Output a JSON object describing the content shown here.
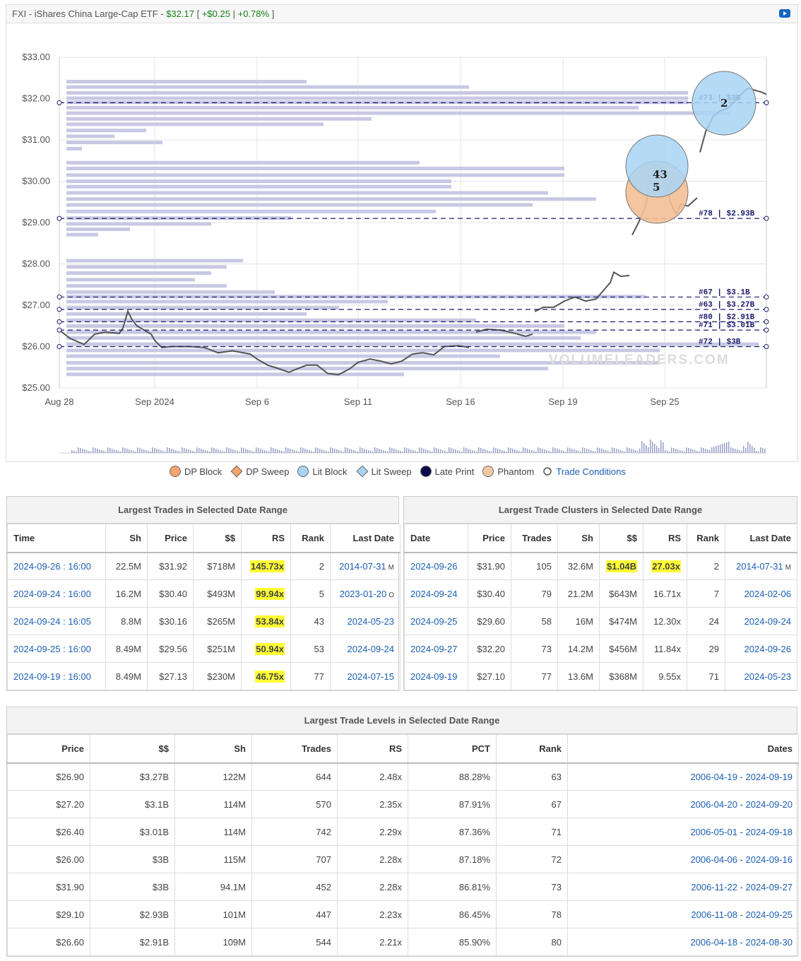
{
  "header": {
    "symbol": "FXI - iShares China Large-Cap ETF -",
    "price": "$32.17",
    "change": "+$0.25",
    "change_pct": "+0.78%",
    "open_bracket": "[",
    "pipe": "|",
    "close_bracket": "]"
  },
  "chart": {
    "watermark": "VOLUMELEADERS.COM",
    "y_ticks": [
      "$33.00",
      "$32.00",
      "$31.00",
      "$30.00",
      "$29.00",
      "$28.00",
      "$27.00",
      "$26.00",
      "$25.00"
    ],
    "x_ticks": [
      "Aug 28",
      "Sep 2024",
      "Sep 6",
      "Sep 11",
      "Sep 16",
      "Sep 19",
      "Sep 25"
    ],
    "level_labels": [
      {
        "text": "#73 | $3B",
        "price": 31.9
      },
      {
        "text": "#78 | $2.93B",
        "price": 29.1
      },
      {
        "text": "#67 | $3.1B",
        "price": 27.2
      },
      {
        "text": "#63 | $3.27B",
        "price": 26.9
      },
      {
        "text": "#80 | $2.91B",
        "price": 26.6
      },
      {
        "text": "#71 | $3.01B",
        "price": 26.4
      },
      {
        "text": "#72 | $3B",
        "price": 26.0
      }
    ],
    "bubbles": [
      {
        "rank_text": "2",
        "color": "#a8d4f5"
      },
      {
        "rank_text": "43",
        "color": "#a8d4f5"
      },
      {
        "rank_text": "5",
        "color": "#f3bf93"
      }
    ],
    "colors": {
      "line": "#555555",
      "level": "#1a1a6e",
      "volume_profile": "#c8c8e4",
      "up": "#1a7f1a"
    }
  },
  "legend": [
    {
      "label": "DP Block",
      "shape": "circle",
      "color": "#f3a56c"
    },
    {
      "label": "DP Sweep",
      "shape": "diamond",
      "color": "#f3a56c"
    },
    {
      "label": "Lit Block",
      "shape": "circle",
      "color": "#a8d4f5"
    },
    {
      "label": "Lit Sweep",
      "shape": "diamond",
      "color": "#a8d4f5"
    },
    {
      "label": "Late Print",
      "shape": "circle",
      "color": "#0b0b4a"
    },
    {
      "label": "Phantom",
      "shape": "circle",
      "color": "#f3c9a5"
    },
    {
      "label": "Trade Conditions",
      "shape": "icon",
      "color": "#1a5fb4"
    }
  ],
  "trades": {
    "title": "Largest Trades in Selected Date Range",
    "columns": [
      "Time",
      "Sh",
      "Price",
      "$$",
      "RS",
      "Rank",
      "Last Date"
    ],
    "rows": [
      {
        "time": "2024-09-26 : 16:00",
        "sh": "22.5M",
        "price": "$31.92",
        "dollars": "$718M",
        "rs": "145.73x",
        "rank": "2",
        "last": "2014-07-31",
        "suffix": "M"
      },
      {
        "time": "2024-09-24 : 16:00",
        "sh": "16.2M",
        "price": "$30.40",
        "dollars": "$493M",
        "rs": "99.94x",
        "rank": "5",
        "last": "2023-01-20",
        "suffix": "O"
      },
      {
        "time": "2024-09-24 : 16:05",
        "sh": "8.8M",
        "price": "$30.16",
        "dollars": "$265M",
        "rs": "53.84x",
        "rank": "43",
        "last": "2024-05-23",
        "suffix": ""
      },
      {
        "time": "2024-09-25 : 16:00",
        "sh": "8.49M",
        "price": "$29.56",
        "dollars": "$251M",
        "rs": "50.94x",
        "rank": "53",
        "last": "2024-09-24",
        "suffix": ""
      },
      {
        "time": "2024-09-19 : 16:00",
        "sh": "8.49M",
        "price": "$27.13",
        "dollars": "$230M",
        "rs": "46.75x",
        "rank": "77",
        "last": "2024-07-15",
        "suffix": ""
      }
    ]
  },
  "clusters": {
    "title": "Largest Trade Clusters in Selected Date Range",
    "columns": [
      "Date",
      "Price",
      "Trades",
      "Sh",
      "$$",
      "RS",
      "Rank",
      "Last Date"
    ],
    "rows": [
      {
        "date": "2024-09-26",
        "price": "$31.90",
        "trades": "105",
        "sh": "32.6M",
        "dollars": "$1.04B",
        "rs": "27.03x",
        "rank": "2",
        "last": "2014-07-31",
        "suffix": "M",
        "hl": true
      },
      {
        "date": "2024-09-24",
        "price": "$30.40",
        "trades": "79",
        "sh": "21.2M",
        "dollars": "$643M",
        "rs": "16.71x",
        "rank": "7",
        "last": "2024-02-06",
        "suffix": "",
        "hl": false
      },
      {
        "date": "2024-09-25",
        "price": "$29.60",
        "trades": "58",
        "sh": "16M",
        "dollars": "$474M",
        "rs": "12.30x",
        "rank": "24",
        "last": "2024-09-24",
        "suffix": "",
        "hl": false
      },
      {
        "date": "2024-09-27",
        "price": "$32.20",
        "trades": "73",
        "sh": "14.2M",
        "dollars": "$456M",
        "rs": "11.84x",
        "rank": "29",
        "last": "2024-09-26",
        "suffix": "",
        "hl": false
      },
      {
        "date": "2024-09-19",
        "price": "$27.10",
        "trades": "77",
        "sh": "13.6M",
        "dollars": "$368M",
        "rs": "9.55x",
        "rank": "71",
        "last": "2024-05-23",
        "suffix": "",
        "hl": false
      }
    ]
  },
  "levels": {
    "title": "Largest Trade Levels in Selected Date Range",
    "columns": [
      "Price",
      "$$",
      "Sh",
      "Trades",
      "RS",
      "PCT",
      "Rank",
      "Dates"
    ],
    "rows": [
      {
        "price": "$26.90",
        "dollars": "$3.27B",
        "sh": "122M",
        "trades": "644",
        "rs": "2.48x",
        "pct": "88.28%",
        "rank": "63",
        "dates": "2006-04-19 - 2024-09-19"
      },
      {
        "price": "$27.20",
        "dollars": "$3.1B",
        "sh": "114M",
        "trades": "570",
        "rs": "2.35x",
        "pct": "87.91%",
        "rank": "67",
        "dates": "2006-04-20 - 2024-09-20"
      },
      {
        "price": "$26.40",
        "dollars": "$3.01B",
        "sh": "114M",
        "trades": "742",
        "rs": "2.29x",
        "pct": "87.36%",
        "rank": "71",
        "dates": "2006-05-01 - 2024-09-18"
      },
      {
        "price": "$26.00",
        "dollars": "$3B",
        "sh": "115M",
        "trades": "707",
        "rs": "2.28x",
        "pct": "87.18%",
        "rank": "72",
        "dates": "2006-04-06 - 2024-09-16"
      },
      {
        "price": "$31.90",
        "dollars": "$3B",
        "sh": "94.1M",
        "trades": "452",
        "rs": "2.28x",
        "pct": "86.81%",
        "rank": "73",
        "dates": "2006-11-22 - 2024-09-27"
      },
      {
        "price": "$29.10",
        "dollars": "$2.93B",
        "sh": "101M",
        "trades": "447",
        "rs": "2.23x",
        "pct": "86.45%",
        "rank": "78",
        "dates": "2006-11-08 - 2024-09-25"
      },
      {
        "price": "$26.60",
        "dollars": "$2.91B",
        "sh": "109M",
        "trades": "544",
        "rs": "2.21x",
        "pct": "85.90%",
        "rank": "80",
        "dates": "2006-04-18 - 2024-08-30"
      }
    ]
  }
}
